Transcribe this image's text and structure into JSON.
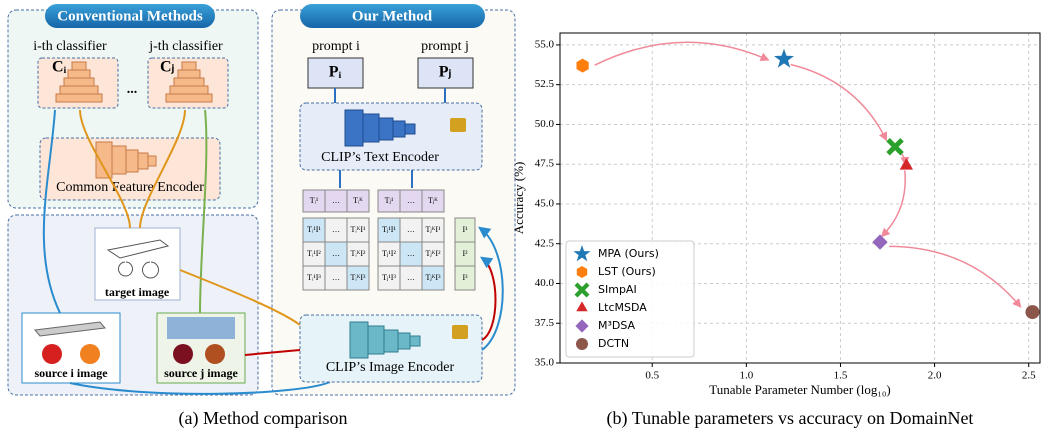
{
  "diagram": {
    "conventional_title": "Conventional Methods",
    "our_title": "Our Method",
    "classifier_i": "i-th classifier",
    "classifier_j": "j-th classifier",
    "c_i": "Cᵢ",
    "c_j": "Cⱼ",
    "dots": "...",
    "common_encoder": "Common Feature Encoder",
    "target_image": "target image",
    "source_i_image": "source i image",
    "source_j_image": "source j image",
    "prompt_i": "prompt i",
    "prompt_j": "prompt j",
    "p_i": "Pᵢ",
    "p_j": "Pⱼ",
    "text_encoder": "CLIP’s Text Encoder",
    "image_encoder": "CLIP’s Image Encoder",
    "text_row_i": [
      "Tᵢ¹",
      "…",
      "Tᵢᴷ"
    ],
    "text_row_j": [
      "Tⱼ¹",
      "…",
      "Tⱼᴷ"
    ],
    "matrix_i": [
      [
        "Tᵢ¹I¹",
        "…",
        "TᵢᴷI¹"
      ],
      [
        "Tᵢ¹I²",
        "…",
        "TᵢᴷI²"
      ],
      [
        "Tᵢ¹I³",
        "…",
        "TᵢᴷI³"
      ]
    ],
    "matrix_j": [
      [
        "Tⱼ¹I¹",
        "…",
        "TⱼᴷI¹"
      ],
      [
        "Tⱼ¹I²",
        "…",
        "TⱼᴷI²"
      ],
      [
        "Tⱼ¹I³",
        "…",
        "TⱼᴷI³"
      ]
    ],
    "image_col": [
      "I¹",
      "I²",
      "I³"
    ]
  },
  "captions": [
    "(a) Method comparison",
    "(b) Tunable parameters vs accuracy on DomainNet"
  ],
  "chart_data": {
    "type": "scatter",
    "x_label": "Tunable Parameter Number (log₁₀)",
    "y_label": "Accuracy (%)",
    "xlim": [
      0.01,
      2.56
    ],
    "ylim": [
      35,
      55.75
    ],
    "xticks": [
      0.5,
      {
        "value": 1,
        "label": "1.0"
      },
      1.5,
      {
        "value": 2,
        "label": "2.0"
      },
      2.5
    ],
    "yticks": [
      {
        "value": 35,
        "label": "35.0"
      },
      37.5,
      {
        "value": 40,
        "label": "40.0"
      },
      42.5,
      {
        "value": 45,
        "label": "45.0"
      },
      47.5,
      {
        "value": 50,
        "label": "50.0"
      },
      52.5,
      {
        "value": 55,
        "label": "55.0"
      }
    ],
    "grid": true,
    "legend": "lower left",
    "series": [
      {
        "name": "MPA (Ours)",
        "color": "#1f77b4",
        "marker": "star",
        "x": [
          1.2
        ],
        "values": [
          54.1
        ]
      },
      {
        "name": "LST (Ours)",
        "color": "#ff7f0e",
        "marker": "hexagon",
        "x": [
          0.13
        ],
        "values": [
          53.7
        ]
      },
      {
        "name": "SImpAI",
        "color": "#2ca02c",
        "marker": "x",
        "x": [
          1.79
        ],
        "values": [
          48.6
        ]
      },
      {
        "name": "LtcMSDA",
        "color": "#d62728",
        "marker": "triangle",
        "x": [
          1.85
        ],
        "values": [
          47.4
        ]
      },
      {
        "name": "M³DSA",
        "color": "#9467bd",
        "marker": "diamond",
        "x": [
          1.71
        ],
        "values": [
          42.6
        ]
      },
      {
        "name": "DCTN",
        "color": "#8c564b",
        "marker": "circle",
        "x": [
          2.52
        ],
        "values": [
          38.2
        ]
      }
    ]
  }
}
